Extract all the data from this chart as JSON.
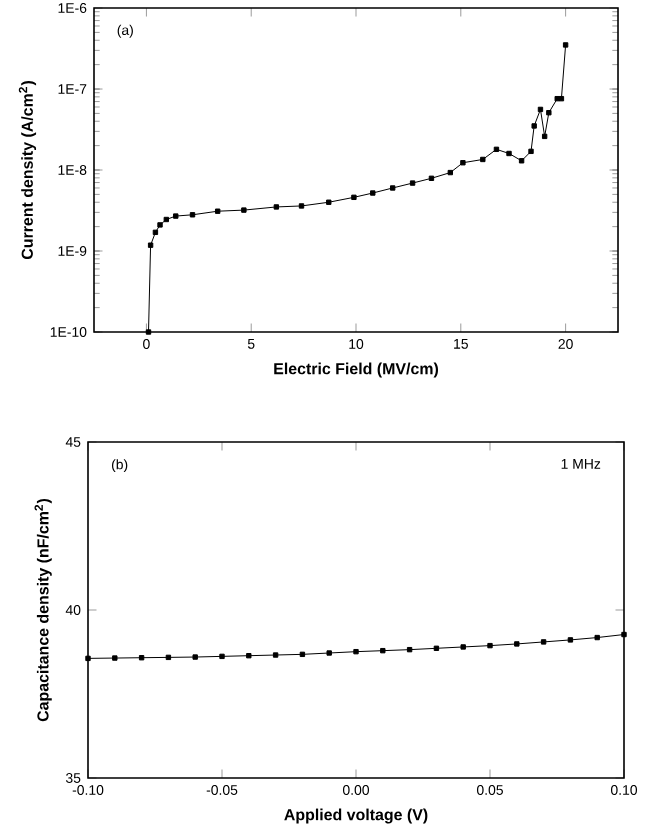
{
  "chart_data": [
    {
      "type": "line",
      "xlabel": "Electric Field (MV/cm)",
      "ylabel": "Current density (A/cm$^{2}$)",
      "log": "y",
      "marker": "square",
      "line_style": "solid",
      "color": "#000000",
      "annotations": [
        "(a)"
      ],
      "xlim": [
        -2.5,
        22.5
      ],
      "xticks": [
        0,
        5,
        10,
        15,
        20
      ],
      "ylim": [
        1e-10,
        1e-06
      ],
      "yticks": [
        {
          "value": 1e-10,
          "label": "1E-10"
        },
        {
          "value": 1e-09,
          "label": "1E-9"
        },
        {
          "value": 1e-08,
          "label": "1E-8"
        },
        {
          "value": 1e-07,
          "label": "1E-7"
        },
        {
          "value": 1e-06,
          "label": "1E-6"
        }
      ],
      "x": [
        0.1,
        0.2,
        0.43,
        0.65,
        0.95,
        1.4,
        2.2,
        3.4,
        4.65,
        6.2,
        7.4,
        8.7,
        9.9,
        10.8,
        11.75,
        12.7,
        13.6,
        14.5,
        15.1,
        16.05,
        16.7,
        17.3,
        17.9,
        18.35,
        18.5,
        18.8,
        19.0,
        19.2,
        19.6,
        19.8,
        20.0
      ],
      "values": [
        1e-10,
        1.18e-09,
        1.7e-09,
        2.1e-09,
        2.45e-09,
        2.7e-09,
        2.8e-09,
        3.1e-09,
        3.2e-09,
        3.5e-09,
        3.6e-09,
        4e-09,
        4.6e-09,
        5.2e-09,
        6e-09,
        6.9e-09,
        7.9e-09,
        9.3e-09,
        1.23e-08,
        1.35e-08,
        1.8e-08,
        1.6e-08,
        1.3e-08,
        1.7e-08,
        3.5e-08,
        5.6e-08,
        2.6e-08,
        5.1e-08,
        7.6e-08,
        7.6e-08,
        3.5e-07
      ]
    },
    {
      "type": "line",
      "xlabel": "Applied voltage (V)",
      "ylabel": "Capacitance density (nF/cm$^{2}$)",
      "marker": "square",
      "line_style": "solid",
      "color": "#000000",
      "annotations": [
        "(b)",
        "1 MHz"
      ],
      "xlim": [
        -0.1,
        0.1
      ],
      "xticks": [
        {
          "value": -0.1,
          "label": "-0.10"
        },
        {
          "value": -0.05,
          "label": "-0.05"
        },
        {
          "value": 0,
          "label": "0.00"
        },
        {
          "value": 0.05,
          "label": "0.05"
        },
        {
          "value": 0.1,
          "label": "0.10"
        }
      ],
      "ylim": [
        35,
        45
      ],
      "yticks": [
        35,
        40,
        45
      ],
      "x": [
        -0.1,
        -0.09,
        -0.08,
        -0.07,
        -0.06,
        -0.05,
        -0.04,
        -0.03,
        -0.02,
        -0.01,
        0.0,
        0.01,
        0.02,
        0.03,
        0.04,
        0.05,
        0.06,
        0.07,
        0.08,
        0.09,
        0.1
      ],
      "values": [
        38.56,
        38.57,
        38.58,
        38.59,
        38.6,
        38.62,
        38.64,
        38.66,
        38.68,
        38.72,
        38.76,
        38.79,
        38.82,
        38.86,
        38.9,
        38.94,
        38.99,
        39.05,
        39.11,
        39.18,
        39.27
      ]
    }
  ]
}
